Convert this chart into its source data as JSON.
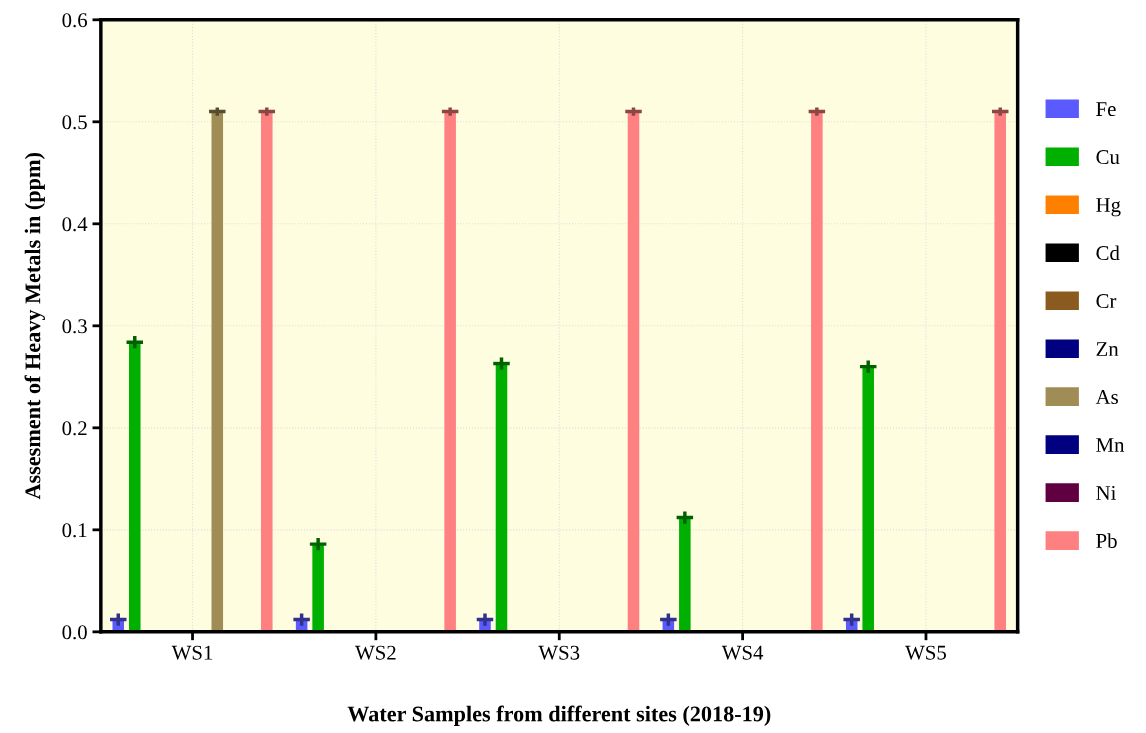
{
  "chart_data": {
    "type": "bar",
    "xlabel": "Water Samples from different sites (2018-19)",
    "ylabel": "Assesment of Heavy Metals in (ppm)",
    "categories": [
      "WS1",
      "WS2",
      "WS3",
      "WS4",
      "WS5"
    ],
    "series": [
      {
        "name": "Fe",
        "color": "#5a5aff",
        "values": [
          0.012,
          0.012,
          0.012,
          0.012,
          0.012
        ],
        "errors": [
          0.006,
          0.006,
          0.006,
          0.006,
          0.006
        ]
      },
      {
        "name": "Cu",
        "color": "#00b000",
        "values": [
          0.284,
          0.086,
          0.263,
          0.112,
          0.26
        ],
        "errors": [
          0.006,
          0.006,
          0.006,
          0.006,
          0.006
        ]
      },
      {
        "name": "Hg",
        "color": "#ff8000",
        "values": [
          0,
          0,
          0,
          0,
          0
        ]
      },
      {
        "name": "Cd",
        "color": "#000000",
        "values": [
          0,
          0,
          0,
          0,
          0
        ]
      },
      {
        "name": "Cr",
        "color": "#8b5a1e",
        "values": [
          0,
          0,
          0,
          0,
          0
        ]
      },
      {
        "name": "Zn",
        "color": "#000080",
        "values": [
          0,
          0,
          0,
          0,
          0
        ]
      },
      {
        "name": "As",
        "color": "#a08c55",
        "values": [
          0.51,
          0,
          0,
          0,
          0
        ],
        "errors": [
          0.004,
          null,
          null,
          null,
          null
        ]
      },
      {
        "name": "Mn",
        "color": "#000080",
        "values": [
          0,
          0,
          0,
          0,
          0
        ]
      },
      {
        "name": "Ni",
        "color": "#600040",
        "values": [
          0,
          0,
          0,
          0,
          0
        ]
      },
      {
        "name": "Pb",
        "color": "#ff8080",
        "values": [
          0.51,
          0.51,
          0.51,
          0.51,
          0.51
        ],
        "errors": [
          0.004,
          0.004,
          0.004,
          0.004,
          0.004
        ]
      }
    ],
    "ylim": [
      0,
      0.6
    ],
    "yticks": [
      {
        "value": 0,
        "label": "0.0"
      },
      0.1,
      0.2,
      0.3,
      0.4,
      0.5,
      0.6
    ],
    "grid": true,
    "legend": "right"
  }
}
